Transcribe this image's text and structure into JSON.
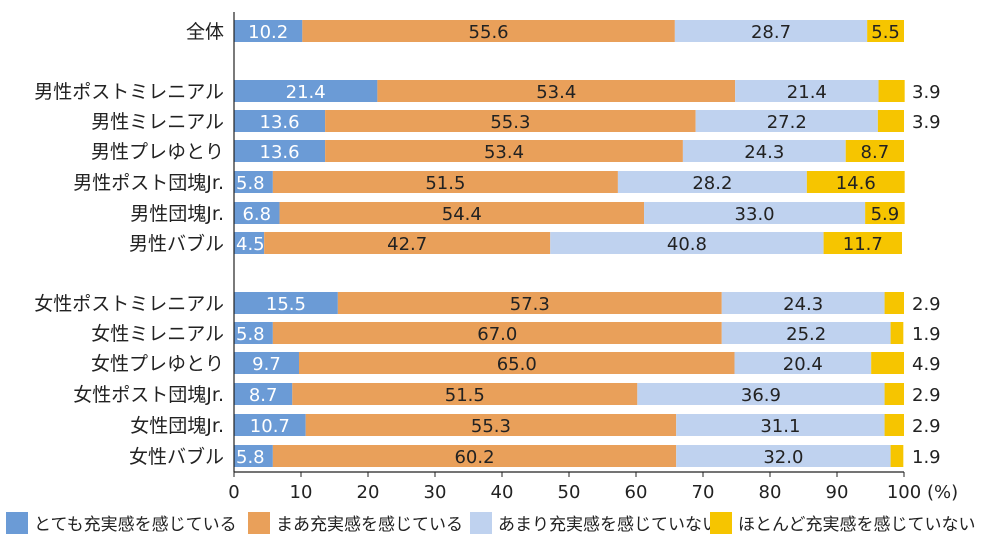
{
  "chart_data": {
    "type": "bar",
    "orientation": "horizontal",
    "stacked": true,
    "xlim": [
      0,
      100
    ],
    "x_ticks": [
      "0",
      "10",
      "20",
      "30",
      "40",
      "50",
      "60",
      "70",
      "80",
      "90",
      "100"
    ],
    "x_unit": "(%)",
    "categories": [
      "全体",
      "男性ポストミレニアル",
      "男性ミレニアル",
      "男性プレゆとり",
      "男性ポスト団塊Jr.",
      "男性団塊Jr.",
      "男性バブル",
      "女性ポストミレニアル",
      "女性ミレニアル",
      "女性プレゆとり",
      "女性ポスト団塊Jr.",
      "女性団塊Jr.",
      "女性バブル"
    ],
    "series": [
      {
        "name": "とても充実感を感じている",
        "color": "#6b9bd6",
        "values": [
          10.2,
          21.4,
          13.6,
          13.6,
          5.8,
          6.8,
          4.5,
          15.5,
          5.8,
          9.7,
          8.7,
          10.7,
          5.8
        ]
      },
      {
        "name": "まあ充実感を感じている",
        "color": "#e9a05a",
        "values": [
          55.6,
          53.4,
          55.3,
          53.4,
          51.5,
          54.4,
          42.7,
          57.3,
          67.0,
          65.0,
          51.5,
          55.3,
          60.2
        ]
      },
      {
        "name": "あまり充実感を感じていない",
        "color": "#bfd2ef",
        "values": [
          28.7,
          21.4,
          27.2,
          24.3,
          28.2,
          33.0,
          40.8,
          24.3,
          25.2,
          20.4,
          36.9,
          31.1,
          32.0
        ]
      },
      {
        "name": "ほとんど充実感を感じていない",
        "color": "#f6c500",
        "values": [
          5.5,
          3.9,
          3.9,
          8.7,
          14.6,
          5.9,
          11.7,
          2.9,
          1.9,
          4.9,
          2.9,
          2.9,
          1.9
        ]
      }
    ],
    "value_labels": [
      [
        "10.2",
        "55.6",
        "28.7",
        "5.5"
      ],
      [
        "21.4",
        "53.4",
        "21.4",
        "3.9"
      ],
      [
        "13.6",
        "55.3",
        "27.2",
        "3.9"
      ],
      [
        "13.6",
        "53.4",
        "24.3",
        "8.7"
      ],
      [
        "5.8",
        "51.5",
        "28.2",
        "14.6"
      ],
      [
        "6.8",
        "54.4",
        "33.0",
        "5.9"
      ],
      [
        "4.5",
        "42.7",
        "40.8",
        "11.7"
      ],
      [
        "15.5",
        "57.3",
        "24.3",
        "2.9"
      ],
      [
        "5.8",
        "67.0",
        "25.2",
        "1.9"
      ],
      [
        "9.7",
        "65.0",
        "20.4",
        "4.9"
      ],
      [
        "8.7",
        "51.5",
        "36.9",
        "2.9"
      ],
      [
        "10.7",
        "55.3",
        "31.1",
        "2.9"
      ],
      [
        "5.8",
        "60.2",
        "32.0",
        "1.9"
      ]
    ],
    "last_label_outside": [
      false,
      true,
      true,
      false,
      false,
      false,
      false,
      true,
      true,
      true,
      true,
      true,
      true
    ],
    "legend_position": "bottom",
    "grid": false
  }
}
